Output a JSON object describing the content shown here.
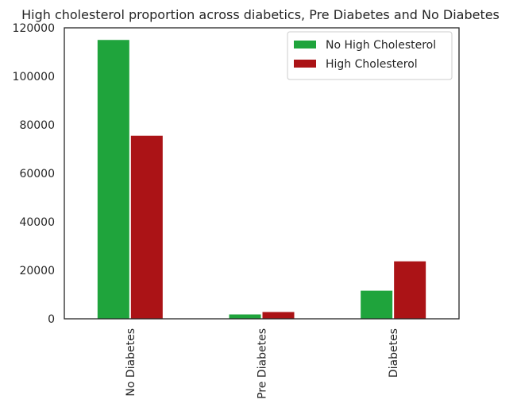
{
  "chart_data": {
    "type": "bar",
    "title": "High cholesterol proportion across diabetics, Pre Diabetes and No Diabetes",
    "xlabel": "",
    "ylabel": "",
    "categories": [
      "No Diabetes",
      "Pre Diabetes",
      "Diabetes"
    ],
    "series": [
      {
        "name": "No High Cholesterol",
        "color": "#1fa43c",
        "values": [
          115000,
          1800,
          11600
        ]
      },
      {
        "name": "High Cholesterol",
        "color": "#ab1316",
        "values": [
          75500,
          2800,
          23700
        ]
      }
    ],
    "ylim": [
      0,
      120000
    ],
    "yticks": [
      "0",
      "20000",
      "40000",
      "60000",
      "80000",
      "100000",
      "120000"
    ],
    "grid": false,
    "legend_position": "top-right"
  }
}
